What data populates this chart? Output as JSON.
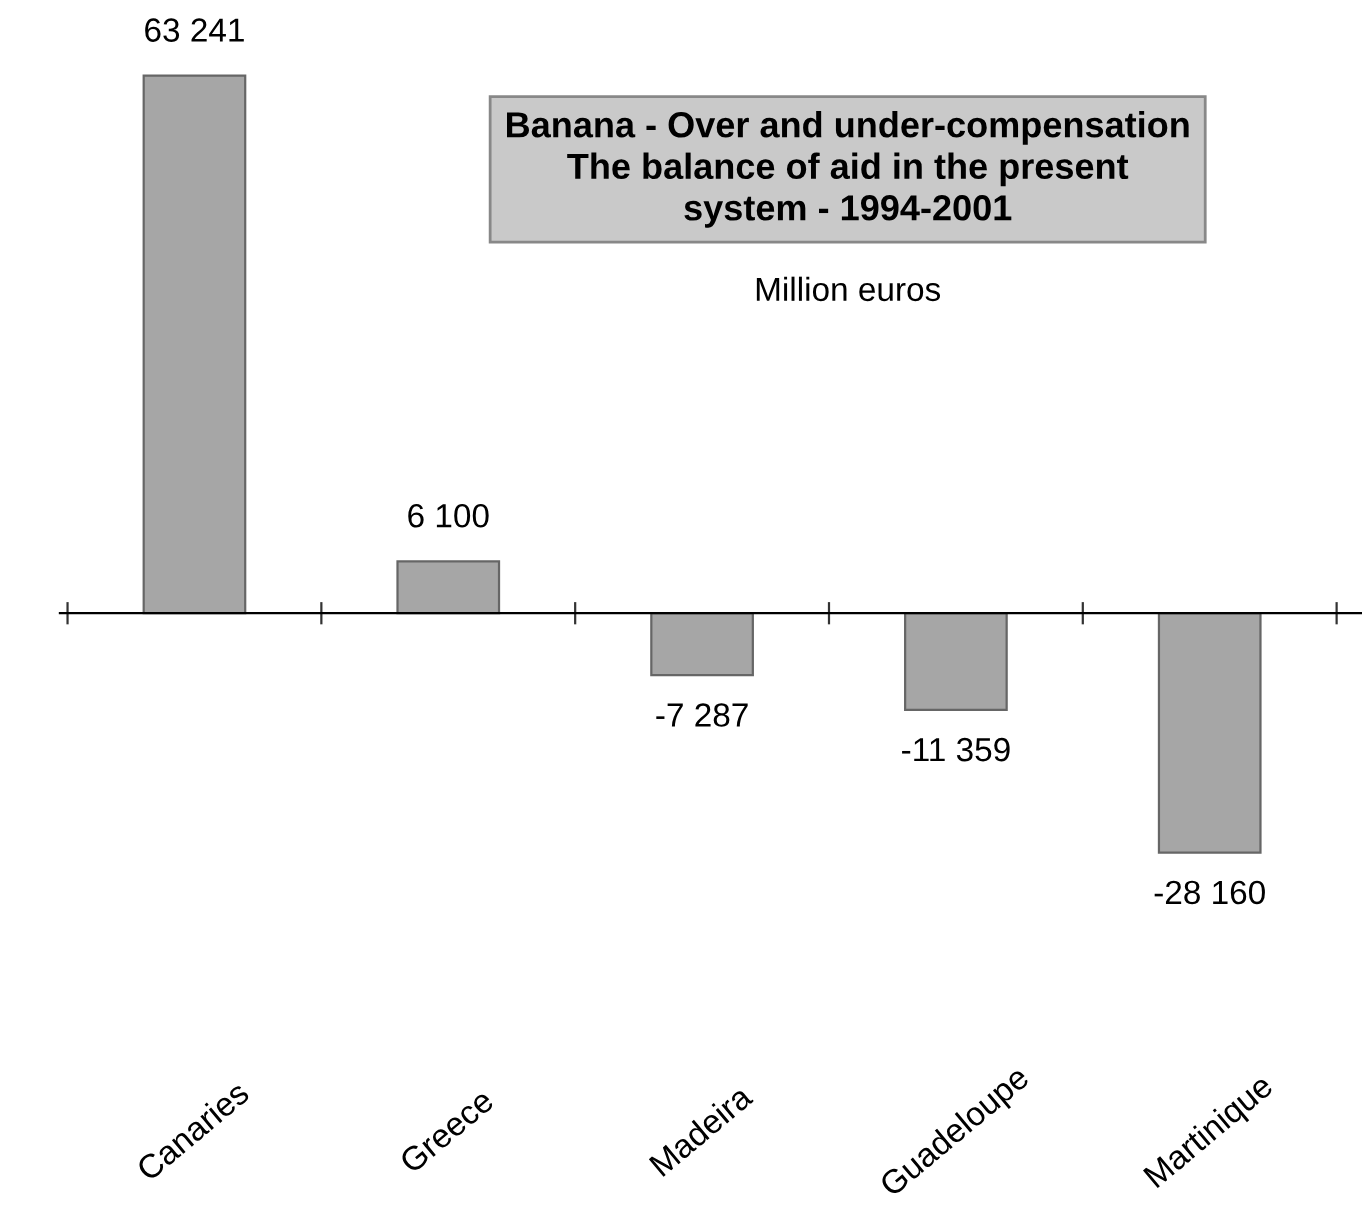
{
  "chart_data": {
    "type": "bar",
    "title": "Banana - Over and under-compensation\nThe balance of aid in the present\nsystem - 1994-2001",
    "subtitle": "Million euros",
    "categories": [
      "Canaries",
      "Greece",
      "Madeira",
      "Guadeloupe",
      "Martinique"
    ],
    "values": [
      63241,
      6100,
      -7287,
      -11359,
      -28160
    ],
    "value_labels": [
      "63 241",
      "6 100",
      "-7 287",
      "-11 359",
      "-28 160"
    ],
    "color": "#a6a6a6",
    "grid": false,
    "legend": false
  }
}
